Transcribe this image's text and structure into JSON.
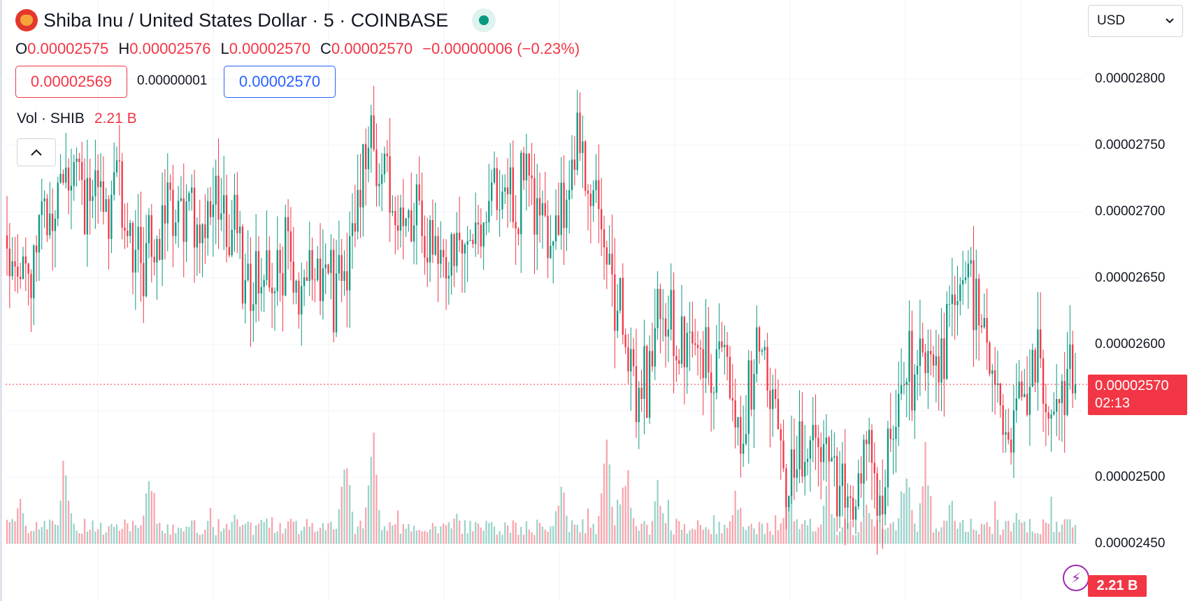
{
  "header": {
    "title": "Shiba Inu / United States Dollar · 5 · COINBASE",
    "ohlc": [
      {
        "label": "O",
        "value": "0.00002575"
      },
      {
        "label": "H",
        "value": "0.00002576"
      },
      {
        "label": "L",
        "value": "0.00002570"
      },
      {
        "label": "C",
        "value": "0.00002570"
      }
    ],
    "change": "−0.00000006 (−0.23%)",
    "bid": "0.00002569",
    "spread": "0.00000001",
    "ask": "0.00002570",
    "volume_label": "Vol · SHIB",
    "volume_value": "2.21 B",
    "collapse_icon": "^"
  },
  "currency_select": {
    "value": "USD"
  },
  "price_tag": {
    "price": "0.00002570",
    "countdown": "02:13"
  },
  "volume_tag": "2.21 B",
  "colors": {
    "up": "#089981",
    "down": "#f23645",
    "up_vol": "#9bd3ca",
    "down_vol": "#f8a5ac"
  },
  "chart_data": {
    "type": "candlestick",
    "interval": "5",
    "y_ticks": [
      "0.00002800",
      "0.00002750",
      "0.00002700",
      "0.00002650",
      "0.00002600",
      "0.00002500",
      "0.00002450"
    ],
    "ylim": [
      2.43e-05,
      2.81e-05
    ],
    "last_price": 2.57e-05,
    "close_path": [
      [
        0,
        2.65e-05
      ],
      [
        3,
        2.665e-05
      ],
      [
        6,
        2.68e-05
      ],
      [
        9,
        2.735e-05
      ],
      [
        12,
        2.72e-05
      ],
      [
        15,
        2.705e-05
      ],
      [
        17,
        2.715e-05
      ],
      [
        19,
        2.67e-05
      ],
      [
        21,
        2.66e-05
      ],
      [
        23,
        2.685e-05
      ],
      [
        26,
        2.705e-05
      ],
      [
        29,
        2.69e-05
      ],
      [
        32,
        2.7e-05
      ],
      [
        35,
        2.68e-05
      ],
      [
        38,
        2.64e-05
      ],
      [
        40,
        2.65e-05
      ],
      [
        42,
        2.675e-05
      ],
      [
        45,
        2.65e-05
      ],
      [
        47,
        2.67e-05
      ],
      [
        50,
        2.645e-05
      ],
      [
        52,
        2.65e-05
      ],
      [
        54,
        2.72e-05
      ],
      [
        56,
        2.755e-05
      ],
      [
        58,
        2.73e-05
      ],
      [
        60,
        2.7e-05
      ],
      [
        63,
        2.69e-05
      ],
      [
        66,
        2.67e-05
      ],
      [
        69,
        2.66e-05
      ],
      [
        72,
        2.695e-05
      ],
      [
        74,
        2.71e-05
      ],
      [
        76,
        2.725e-05
      ],
      [
        78,
        2.715e-05
      ],
      [
        80,
        2.72e-05
      ],
      [
        82,
        2.7e-05
      ],
      [
        84,
        2.705e-05
      ],
      [
        86,
        2.72e-05
      ],
      [
        88,
        2.75e-05
      ],
      [
        90,
        2.71e-05
      ],
      [
        92,
        2.66e-05
      ],
      [
        94,
        2.63e-05
      ],
      [
        96,
        2.58e-05
      ],
      [
        98,
        2.56e-05
      ],
      [
        100,
        2.615e-05
      ],
      [
        102,
        2.605e-05
      ],
      [
        104,
        2.595e-05
      ],
      [
        106,
        2.6e-05
      ],
      [
        108,
        2.58e-05
      ],
      [
        110,
        2.6e-05
      ],
      [
        112,
        2.53e-05
      ],
      [
        114,
        2.57e-05
      ],
      [
        116,
        2.58e-05
      ],
      [
        118,
        2.54e-05
      ],
      [
        120,
        2.5e-05
      ],
      [
        122,
        2.52e-05
      ],
      [
        124,
        2.51e-05
      ],
      [
        126,
        2.5e-05
      ],
      [
        128,
        2.48e-05
      ],
      [
        130,
        2.47e-05
      ],
      [
        132,
        2.52e-05
      ],
      [
        134,
        2.48e-05
      ],
      [
        136,
        2.53e-05
      ],
      [
        138,
        2.58e-05
      ],
      [
        140,
        2.59e-05
      ],
      [
        142,
        2.59e-05
      ],
      [
        144,
        2.6e-05
      ],
      [
        146,
        2.635e-05
      ],
      [
        148,
        2.65e-05
      ],
      [
        150,
        2.59e-05
      ],
      [
        152,
        2.57e-05
      ],
      [
        154,
        2.53e-05
      ],
      [
        156,
        2.56e-05
      ],
      [
        158,
        2.58e-05
      ],
      [
        160,
        2.57e-05
      ],
      [
        162,
        2.56e-05
      ],
      [
        164,
        2.57e-05
      ]
    ],
    "volume_peaks": [
      [
        2,
        0.35
      ],
      [
        9,
        0.6
      ],
      [
        22,
        0.6
      ],
      [
        35,
        0.3
      ],
      [
        52,
        0.75
      ],
      [
        56,
        1.0
      ],
      [
        85,
        0.55
      ],
      [
        92,
        0.85
      ],
      [
        95,
        0.7
      ],
      [
        100,
        0.5
      ],
      [
        112,
        0.45
      ],
      [
        120,
        0.55
      ],
      [
        126,
        0.5
      ],
      [
        132,
        0.4
      ],
      [
        138,
        0.7
      ],
      [
        141,
        0.8
      ],
      [
        145,
        0.35
      ],
      [
        155,
        0.3
      ]
    ],
    "max_volume_label": "2.21 B"
  }
}
